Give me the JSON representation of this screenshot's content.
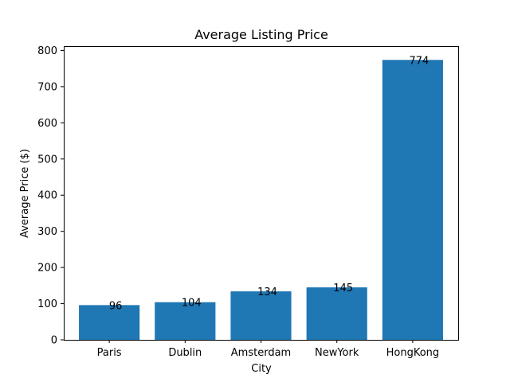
{
  "chart_data": {
    "type": "bar",
    "title": "Average Listing Price",
    "xlabel": "City",
    "ylabel": "Average Price ($)",
    "categories": [
      "Paris",
      "Dublin",
      "Amsterdam",
      "NewYork",
      "HongKong"
    ],
    "values": [
      96,
      104,
      134,
      145,
      774
    ],
    "data_labels": [
      "96",
      "104",
      "134",
      "145",
      "774"
    ],
    "ylim": [
      0,
      812
    ],
    "yticks": [
      0,
      100,
      200,
      300,
      400,
      500,
      600,
      700,
      800
    ],
    "grid": false,
    "bar_color": "#1f77b4"
  }
}
